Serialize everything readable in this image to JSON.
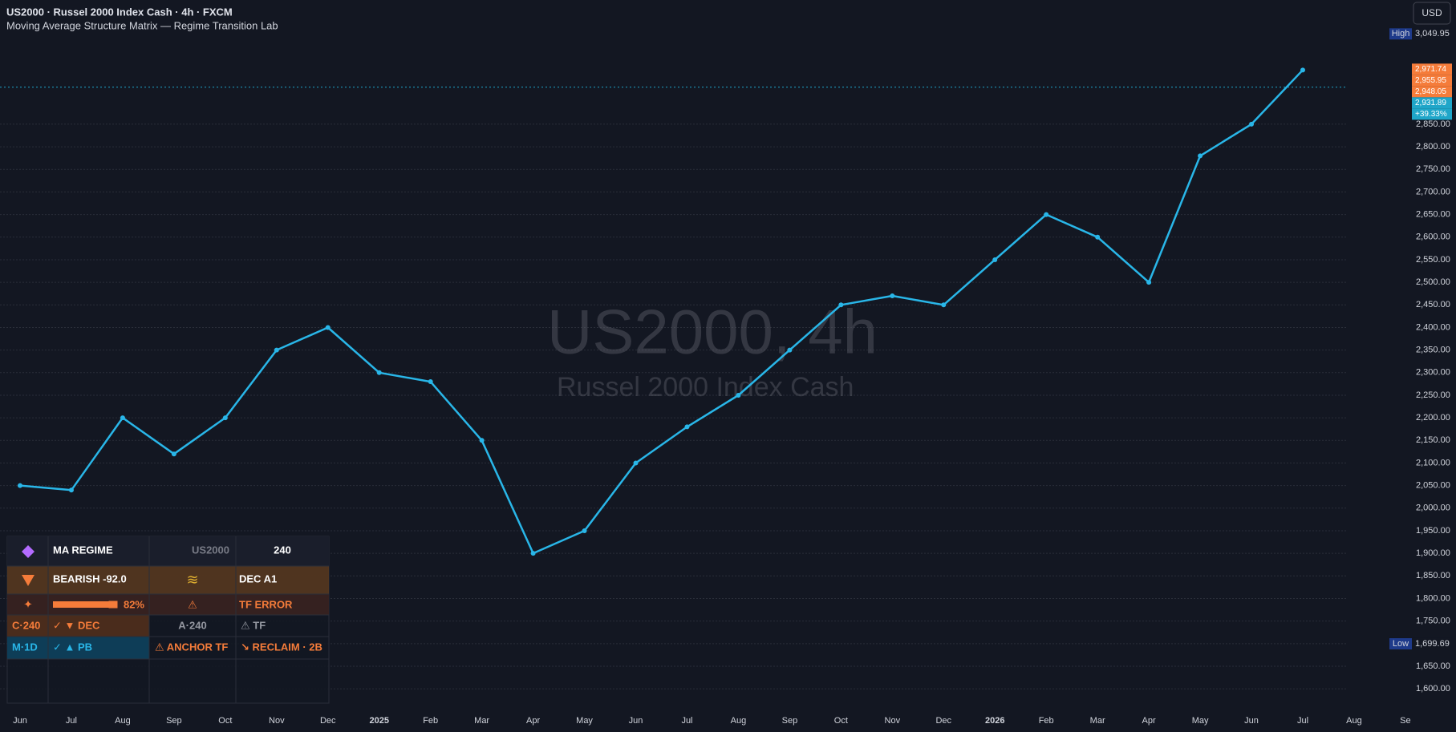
{
  "chart_data": {
    "type": "line",
    "title": "US2000 · Russel 2000 Index Cash · 4h · FXCM",
    "subtitle": "Moving Average Structure Matrix — Regime Transition Lab",
    "watermark": "US2000, 4h",
    "watermark_subtitle": "Russel 2000 Index Cash",
    "currency": "USD",
    "categories": [
      "Jun",
      "Jul",
      "Aug",
      "Sep",
      "Oct",
      "Nov",
      "Dec",
      "2025",
      "Feb",
      "Mar",
      "Apr",
      "May",
      "Jun",
      "Jul",
      "Aug",
      "Sep",
      "Oct",
      "Nov",
      "Dec",
      "2026",
      "Feb",
      "Mar",
      "Apr",
      "May",
      "Jun",
      "Jul",
      "Aug",
      "Se"
    ],
    "values": [
      2050,
      2040,
      2200,
      2120,
      2200,
      2350,
      2400,
      2300,
      2280,
      2150,
      1900,
      1950,
      2100,
      2180,
      2250,
      2350,
      2450,
      2470,
      2450,
      2550,
      2650,
      2600,
      2500,
      2780,
      2850,
      2970,
      null,
      null
    ],
    "color": "#29b6e8",
    "ylim": [
      1563,
      3125
    ],
    "yticks": [
      {
        "value": 1600,
        "label": "1,600.00"
      },
      {
        "value": 1650,
        "label": "1,650.00"
      },
      {
        "value": 1700,
        "label": "1,700.00"
      },
      {
        "value": 1750,
        "label": "1,750.00"
      },
      {
        "value": 1800,
        "label": "1,800.00"
      },
      {
        "value": 1850,
        "label": "1,850.00"
      },
      {
        "value": 1900,
        "label": "1,900.00"
      },
      {
        "value": 1950,
        "label": "1,950.00"
      },
      {
        "value": 2000,
        "label": "2,000.00"
      },
      {
        "value": 2050,
        "label": "2,050.00"
      },
      {
        "value": 2100,
        "label": "2,100.00"
      },
      {
        "value": 2150,
        "label": "2,150.00"
      },
      {
        "value": 2200,
        "label": "2,200.00"
      },
      {
        "value": 2250,
        "label": "2,250.00"
      },
      {
        "value": 2300,
        "label": "2,300.00"
      },
      {
        "value": 2350,
        "label": "2,350.00"
      },
      {
        "value": 2400,
        "label": "2,400.00"
      },
      {
        "value": 2450,
        "label": "2,450.00"
      },
      {
        "value": 2500,
        "label": "2,500.00"
      },
      {
        "value": 2550,
        "label": "2,550.00"
      },
      {
        "value": 2600,
        "label": "2,600.00"
      },
      {
        "value": 2650,
        "label": "2,650.00"
      },
      {
        "value": 2700,
        "label": "2,700.00"
      },
      {
        "value": 2750,
        "label": "2,750.00"
      },
      {
        "value": 2800,
        "label": "2,800.00"
      },
      {
        "value": 2850,
        "label": "2,850.00"
      }
    ],
    "grid": true,
    "high": {
      "name": "High",
      "value": 3049.95,
      "label": "3,049.95"
    },
    "low": {
      "name": "Low",
      "value": 1699.69,
      "label": "1,699.69"
    },
    "price_labels": [
      {
        "value": 2971.74,
        "label": "2,971.74",
        "color": "#f57c3a"
      },
      {
        "value": 2955.95,
        "label": "2,955.95",
        "color": "#f57c3a"
      },
      {
        "value": 2948.05,
        "label": "2,948.05",
        "color": "#f57c3a"
      },
      {
        "value": 2931.89,
        "label": "2,931.89",
        "color": "#1fa6c9"
      }
    ],
    "change_label": "+39.33%"
  },
  "regime_table": {
    "rows": [
      [
        "MA REGIME",
        "US2000",
        "240"
      ],
      [
        "BEARISH -92.0",
        "DEC A1"
      ],
      [
        "82%",
        "TF ERROR"
      ],
      [
        "C·240",
        "✓ ▼ DEC",
        "A·240",
        "⚠ TF"
      ],
      [
        "M·1D",
        "✓ ▲ PB",
        "⚠ ANCHOR TF",
        "↘ RECLAIM · 2B"
      ]
    ]
  }
}
